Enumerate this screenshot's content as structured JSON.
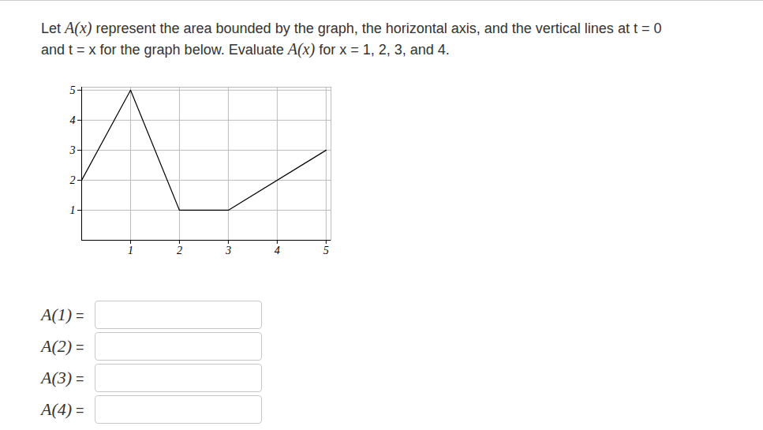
{
  "question": [
    [
      {
        "text": "Let "
      },
      {
        "math": "A(x)"
      },
      {
        "text": " represent the area bounded by the graph, the horizontal axis, and the vertical lines at t = 0"
      }
    ],
    [
      {
        "text": "and t = x for the graph below. Evaluate "
      },
      {
        "math": "A(x)"
      },
      {
        "text": " for x = 1, 2, 3, and 4."
      }
    ]
  ],
  "chart_data": {
    "type": "line",
    "x": [
      0,
      1,
      2,
      3,
      5
    ],
    "values": [
      2,
      5,
      1,
      1,
      3
    ],
    "color": "#000000",
    "xlim": [
      0,
      5.1
    ],
    "ylim": [
      0,
      5.1
    ],
    "xticks": [
      1,
      2,
      3,
      4,
      5
    ],
    "yticks": [
      1,
      2,
      3,
      4,
      5
    ],
    "grid": true
  },
  "inputs": [
    {
      "math": "A(1)",
      "suffix": " ="
    },
    {
      "math": "A(2)",
      "suffix": " ="
    },
    {
      "math": "A(3)",
      "suffix": " ="
    },
    {
      "math": "A(4)",
      "suffix": " ="
    }
  ]
}
